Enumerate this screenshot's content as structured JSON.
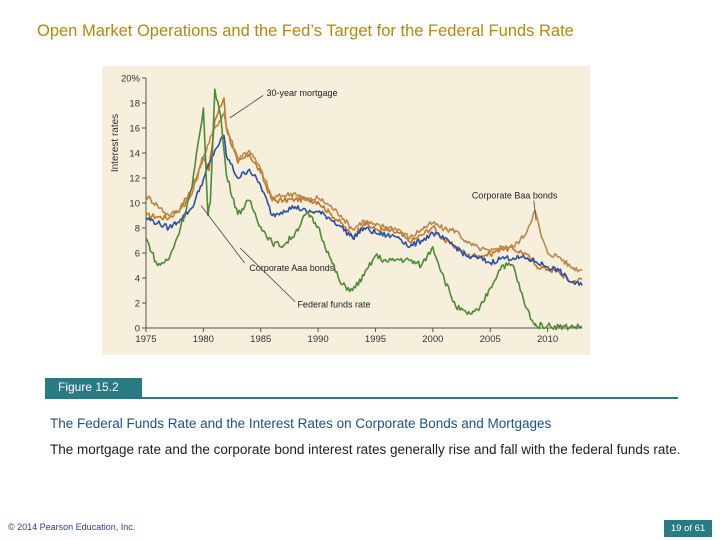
{
  "slide": {
    "title": "Open Market Operations and the Fed’s Target for the Federal Funds Rate",
    "figure_label": "Figure 15.2",
    "figure_title": "The Federal Funds Rate and the Interest Rates on Corporate Bonds and Mortgages",
    "figure_description": "The mortgage rate and the corporate bond interest rates generally rise and fall with the federal funds rate.",
    "copyright": "© 2014 Pearson Education, Inc.",
    "page": "19 of 61"
  },
  "colors": {
    "title": "#b8860b",
    "accent": "#2a7a86",
    "mortgage": "#c8752a",
    "baa": "#b8894a",
    "aaa": "#2c4fa6",
    "fedfunds": "#4f8a34"
  },
  "chart_data": {
    "type": "line",
    "ylabel": "Interest rates",
    "ylim": [
      0,
      20
    ],
    "xlim": [
      1975,
      2013
    ],
    "y_ticks": [
      0,
      2,
      4,
      6,
      8,
      10,
      12,
      14,
      16,
      18,
      20
    ],
    "y_tick_labels": [
      "0",
      "2",
      "4",
      "6",
      "8",
      "10",
      "12",
      "14",
      "16",
      "18",
      "20%"
    ],
    "x_ticks": [
      1975,
      1980,
      1985,
      1990,
      1995,
      2000,
      2005,
      2010
    ],
    "x_tick_labels": [
      "1975",
      "1980",
      "1985",
      "1990",
      "1995",
      "2000",
      "2005",
      "2010"
    ],
    "grid": false,
    "series": [
      {
        "name": "30-year mortgage",
        "color": "#c8752a",
        "x": [
          1975,
          1976,
          1977,
          1978,
          1979,
          1980,
          1980.5,
          1981,
          1981.8,
          1982,
          1983,
          1984,
          1985,
          1986,
          1987,
          1988,
          1989,
          1990,
          1991,
          1992,
          1993,
          1994,
          1995,
          1996,
          1997,
          1998,
          1999,
          2000,
          2001,
          2002,
          2003,
          2004,
          2005,
          2006,
          2007,
          2008,
          2009,
          2010,
          2011,
          2012,
          2013
        ],
        "y": [
          9.0,
          8.9,
          8.8,
          9.6,
          11.2,
          13.7,
          12.6,
          16.6,
          18.4,
          16.0,
          13.2,
          13.9,
          12.4,
          10.2,
          10.2,
          10.3,
          10.3,
          10.1,
          9.2,
          8.4,
          7.3,
          8.4,
          7.9,
          7.8,
          7.6,
          6.9,
          7.4,
          8.1,
          7.0,
          6.5,
          5.8,
          5.8,
          5.9,
          6.4,
          6.3,
          6.0,
          5.0,
          4.7,
          4.5,
          3.7,
          3.9
        ]
      },
      {
        "name": "Corporate Baa bonds",
        "color": "#b8894a",
        "x": [
          1975,
          1976,
          1977,
          1978,
          1979,
          1980,
          1981,
          1981.8,
          1982,
          1983,
          1984,
          1985,
          1986,
          1987,
          1988,
          1989,
          1990,
          1991,
          1992,
          1993,
          1994,
          1995,
          1996,
          1997,
          1998,
          1999,
          2000,
          2001,
          2002,
          2003,
          2004,
          2005,
          2006,
          2007,
          2008,
          2008.9,
          2009.5,
          2010,
          2011,
          2012,
          2013
        ],
        "y": [
          10.6,
          9.8,
          9.0,
          9.5,
          10.7,
          13.7,
          16.0,
          17.2,
          16.1,
          13.6,
          14.2,
          12.7,
          10.4,
          10.6,
          10.8,
          10.2,
          10.4,
          9.8,
          9.0,
          7.9,
          8.6,
          8.2,
          8.1,
          7.9,
          7.2,
          7.9,
          8.4,
          7.9,
          7.8,
          6.8,
          6.4,
          6.1,
          6.5,
          6.5,
          7.4,
          9.4,
          7.2,
          6.0,
          5.7,
          4.9,
          4.6
        ]
      },
      {
        "name": "Corporate Aaa bonds",
        "color": "#2c4fa6",
        "x": [
          1975,
          1976,
          1977,
          1978,
          1979,
          1980,
          1981,
          1981.8,
          1982,
          1983,
          1984,
          1985,
          1986,
          1987,
          1988,
          1989,
          1990,
          1991,
          1992,
          1993,
          1994,
          1995,
          1996,
          1997,
          1998,
          1999,
          2000,
          2001,
          2002,
          2003,
          2004,
          2005,
          2006,
          2007,
          2008,
          2009,
          2010,
          2011,
          2012,
          2013
        ],
        "y": [
          8.8,
          8.4,
          8.0,
          8.7,
          9.6,
          11.9,
          14.2,
          15.4,
          13.8,
          12.0,
          12.7,
          11.4,
          9.0,
          9.4,
          9.7,
          9.3,
          9.3,
          8.8,
          8.1,
          7.2,
          8.0,
          7.6,
          7.4,
          7.3,
          6.5,
          7.0,
          7.6,
          7.1,
          6.5,
          5.7,
          5.6,
          5.2,
          5.6,
          5.6,
          5.6,
          5.3,
          4.9,
          4.6,
          3.7,
          3.4
        ]
      },
      {
        "name": "Federal funds rate",
        "color": "#4f8a34",
        "x": [
          1975,
          1976,
          1977,
          1978,
          1979,
          1980,
          1980.4,
          1980.6,
          1981,
          1981.5,
          1982,
          1983,
          1984,
          1985,
          1986,
          1987,
          1988,
          1989,
          1990,
          1991,
          1992,
          1993,
          1994,
          1995,
          1996,
          1997,
          1998,
          1999,
          2000,
          2001,
          2002,
          2003,
          2004,
          2005,
          2006,
          2007,
          2008,
          2008.9,
          2009,
          2010,
          2011,
          2012,
          2013
        ],
        "y": [
          7.2,
          5.0,
          5.5,
          8.0,
          11.2,
          17.6,
          9.0,
          10.0,
          19.1,
          17.0,
          12.3,
          9.1,
          10.2,
          8.1,
          6.8,
          6.6,
          7.6,
          9.2,
          8.1,
          5.7,
          3.5,
          3.0,
          4.2,
          5.8,
          5.3,
          5.5,
          5.4,
          5.0,
          6.5,
          3.9,
          1.7,
          1.1,
          1.4,
          3.2,
          5.0,
          5.0,
          1.9,
          0.2,
          0.2,
          0.2,
          0.1,
          0.1,
          0.1
        ]
      }
    ],
    "annotations": [
      {
        "text": "30-year mortgage",
        "x": 1985.5,
        "y": 18.8
      },
      {
        "text": "Corporate Baa bonds",
        "x": 2003.4,
        "y": 10.6
      },
      {
        "text": "Corporate Aaa bonds",
        "x": 1984.0,
        "y": 4.8
      },
      {
        "text": "Federal funds rate",
        "x": 1988.2,
        "y": 1.9
      }
    ]
  }
}
